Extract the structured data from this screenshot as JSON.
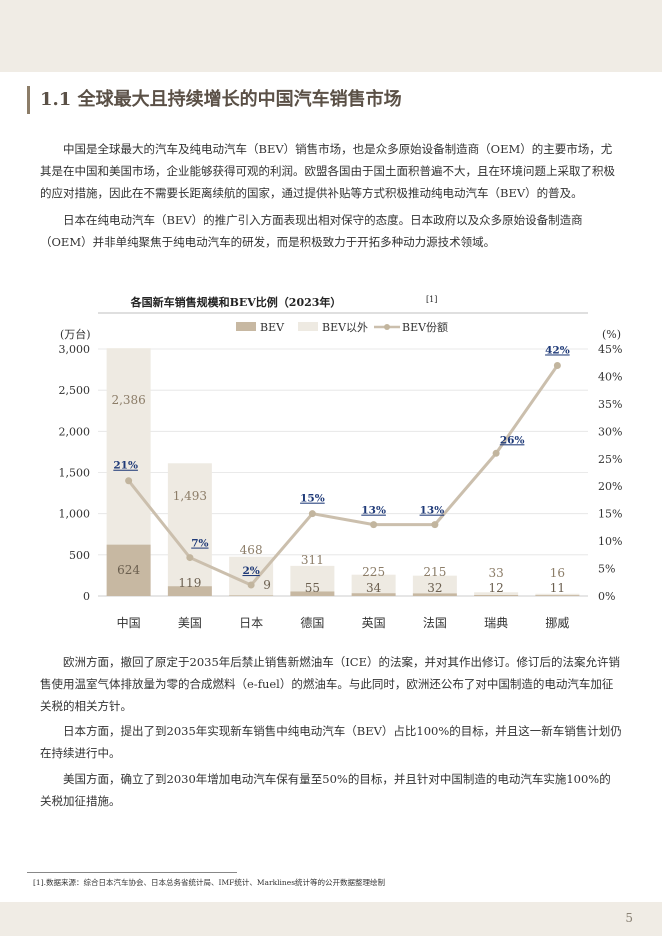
{
  "page": {
    "section_title": "1.1 全球最大且持续增长的中国汽车销售市场",
    "page_number": "5",
    "paragraphs": [
      "中国是全球最大的汽车及纯电动汽车（BEV）销售市场，也是众多原始设备制造商（OEM）的主要市场，尤其是在中国和美国市场，企业能够获得可观的利润。欧盟各国由于国土面积普遍不大，且在环境问题上采取了积极的应对措施，因此在不需要长距离续航的国家，通过提供补贴等方式积极推动纯电动汽车（BEV）的普及。",
      "日本在纯电动汽车（BEV）的推广引入方面表现出相对保守的态度。日本政府以及众多原始设备制造商（OEM）并非单纯聚焦于纯电动汽车的研发，而是积极致力于开拓多种动力源技术领域。",
      "欧洲方面，撤回了原定于2035年后禁止销售新燃油车（ICE）的法案，并对其作出修订。修订后的法案允许销售使用温室气体排放量为零的合成燃料（e-fuel）的燃油车。与此同时，欧洲还公布了对中国制造的电动汽车加征关税的相关方针。",
      "日本方面，提出了到2035年实现新车销售中纯电动汽车（BEV）占比100%的目标，并且这一新车销售计划仍在持续进行中。",
      "美国方面，确立了到2030年增加电动汽车保有量至50%的目标，并且针对中国制造的电动汽车实施100%的关税加征措施。"
    ],
    "footnote": "[1].数据来源：综合日本汽车协会、日本总务省统计局、IMF统计、Marklines统计等的公开数据整理绘制"
  },
  "chart_data": {
    "type": "bar",
    "title": "各国新车销售规模和BEV比例（2023年）",
    "title_ref": "[1]",
    "ylabel_left": "(万台)",
    "ylabel_right": "(%)",
    "ylim_left": [
      0,
      3000
    ],
    "ylim_right": [
      0,
      45
    ],
    "yticks_left": [
      "0",
      "500",
      "1,000",
      "1,500",
      "2,000",
      "2,500",
      "3,000"
    ],
    "yticks_right": [
      "0%",
      "5%",
      "10%",
      "15%",
      "20%",
      "25%",
      "30%",
      "35%",
      "40%",
      "45%"
    ],
    "stacked": true,
    "categories": [
      "中国",
      "美国",
      "日本",
      "德国",
      "英国",
      "法国",
      "瑞典",
      "挪威"
    ],
    "series": [
      {
        "name": "BEV",
        "values": [
          624,
          119,
          9,
          55,
          34,
          32,
          12,
          11
        ],
        "labels": [
          "624",
          "119",
          "9",
          "55",
          "34",
          "32",
          "12",
          "11"
        ],
        "color": "#c7b8a2"
      },
      {
        "name": "BEV以外",
        "values": [
          2386,
          1493,
          468,
          311,
          225,
          215,
          33,
          16
        ],
        "labels": [
          "2,386",
          "1,493",
          "468",
          "311",
          "225",
          "215",
          "33",
          "16"
        ],
        "color": "#eeeae2"
      },
      {
        "name": "BEV份额",
        "type": "line",
        "axis": "right",
        "values": [
          21,
          7,
          2,
          15,
          13,
          13,
          26,
          42
        ],
        "labels": [
          "21%",
          "7%",
          "2%",
          "15%",
          "13%",
          "13%",
          "26%",
          "42%"
        ],
        "color": "#cbbfad"
      }
    ],
    "legend_position": "top",
    "grid": true,
    "label_colors": {
      "bar_labels": "#8c7d68",
      "share_labels": "#1f3a78",
      "axis": "#333333"
    }
  }
}
